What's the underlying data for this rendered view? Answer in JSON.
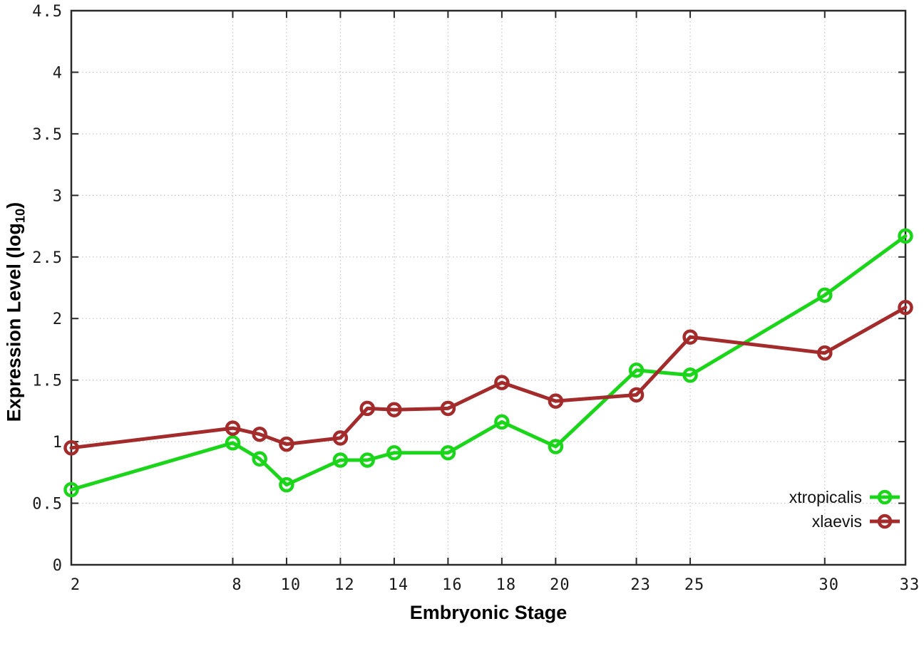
{
  "labels": {
    "xlabel": "Embryonic Stage",
    "ylabel_main": "Expression Level (log",
    "ylabel_sub": "10",
    "ylabel_close": ")"
  },
  "axes": {
    "y_tick_labels": [
      "0",
      "0.5",
      "1",
      "1.5",
      "2",
      "2.5",
      "3",
      "3.5",
      "4",
      "4.5"
    ],
    "x_tick_labels": [
      "2",
      "8",
      "10",
      "12",
      "14",
      "16",
      "18",
      "20",
      "23",
      "25",
      "30",
      "33"
    ]
  },
  "theme": {
    "background": "#ffffff",
    "axis_color": "#2a2a2a",
    "grid_color": "#c9c9c9",
    "tick_label_color": "#1a1a1a",
    "series_green": "#1bd51b",
    "series_red": "#a32b2b"
  },
  "chart_data": {
    "type": "line",
    "title": "",
    "xlabel": "Embryonic Stage",
    "ylabel": "Expression Level (log10)",
    "xlim": [
      2,
      33
    ],
    "ylim": [
      0,
      4.5
    ],
    "x_ticks": [
      2,
      8,
      10,
      12,
      14,
      16,
      18,
      20,
      23,
      25,
      30,
      33
    ],
    "y_ticks": [
      0,
      0.5,
      1,
      1.5,
      2,
      2.5,
      3,
      3.5,
      4,
      4.5
    ],
    "grid": true,
    "grid_style": "dotted",
    "legend_position": "inside bottom-right",
    "marker": "open-circle",
    "x": [
      2,
      8,
      9,
      10,
      12,
      13,
      14,
      16,
      18,
      20,
      23,
      25,
      30,
      33
    ],
    "series": [
      {
        "name": "xtropicalis",
        "color": "#1bd51b",
        "values": [
          0.61,
          0.99,
          0.86,
          0.65,
          0.85,
          0.85,
          0.91,
          0.91,
          1.16,
          0.96,
          1.58,
          1.54,
          2.19,
          2.67
        ]
      },
      {
        "name": "xlaevis",
        "color": "#a32b2b",
        "values": [
          0.95,
          1.11,
          1.06,
          0.98,
          1.03,
          1.27,
          1.26,
          1.27,
          1.48,
          1.33,
          1.38,
          1.85,
          1.72,
          2.09
        ]
      }
    ]
  }
}
